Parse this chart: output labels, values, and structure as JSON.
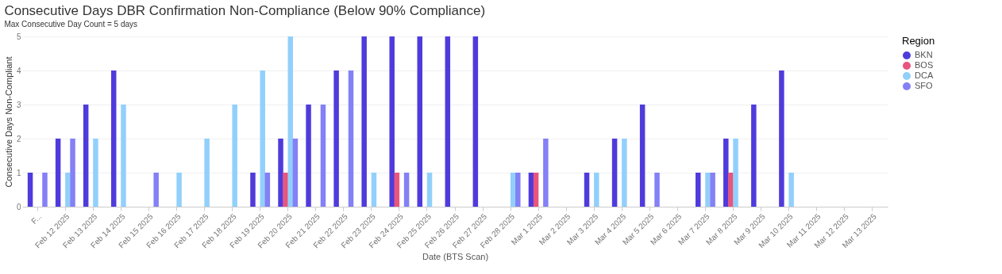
{
  "chart_data": {
    "type": "bar",
    "title": "Consecutive Days DBR Confirmation Non-Compliance  (Below 90% Compliance)",
    "subtitle": "Max Consecutive Day Count = 5 days",
    "xlabel": "Date (BTS Scan)",
    "ylabel": "Consecutive Days Non-Compliant",
    "legend_title": "Region",
    "categories": [
      "F...",
      "Feb 12 2025",
      "Feb 13 2025",
      "Feb 14 2025",
      "Feb 15 2025",
      "Feb 16 2025",
      "Feb 17 2025",
      "Feb 18 2025",
      "Feb 19 2025",
      "Feb 20 2025",
      "Feb 21 2025",
      "Feb 22 2025",
      "Feb 23 2025",
      "Feb 24 2025",
      "Feb 25 2025",
      "Feb 26 2025",
      "Feb 27 2025",
      "Feb 28 2025",
      "Mar 1 2025",
      "Mar 2 2025",
      "Mar 3 2025",
      "Mar 4 2025",
      "Mar 5 2025",
      "Mar 6 2025",
      "Mar 7 2025",
      "Mar 8 2025",
      "Mar 9 2025",
      "Mar 10 2025",
      "Mar 11 2025",
      "Mar 12 2025",
      "Mar 13 2025"
    ],
    "series": [
      {
        "name": "BKN",
        "color": "#4f3bdc",
        "values": [
          1,
          2,
          3,
          4,
          null,
          null,
          null,
          null,
          1,
          2,
          3,
          4,
          5,
          5,
          5,
          5,
          5,
          null,
          1,
          null,
          1,
          2,
          3,
          null,
          1,
          2,
          3,
          4,
          null,
          null,
          null
        ]
      },
      {
        "name": "BOS",
        "color": "#e8557d",
        "values": [
          null,
          null,
          null,
          null,
          null,
          null,
          null,
          null,
          null,
          1,
          null,
          null,
          null,
          1,
          null,
          null,
          null,
          null,
          1,
          null,
          null,
          null,
          null,
          null,
          null,
          1,
          null,
          null,
          null,
          null,
          null
        ]
      },
      {
        "name": "DCA",
        "color": "#92d0fb",
        "values": [
          null,
          1,
          2,
          3,
          null,
          1,
          2,
          3,
          4,
          5,
          null,
          null,
          1,
          null,
          1,
          null,
          null,
          1,
          null,
          null,
          1,
          2,
          null,
          null,
          1,
          2,
          null,
          1,
          null,
          null,
          null
        ]
      },
      {
        "name": "SFO",
        "color": "#8480f6",
        "values": [
          1,
          2,
          null,
          null,
          1,
          null,
          null,
          null,
          1,
          2,
          3,
          4,
          null,
          1,
          null,
          null,
          null,
          1,
          2,
          null,
          null,
          null,
          1,
          null,
          1,
          null,
          null,
          null,
          null,
          null,
          null
        ]
      }
    ],
    "ylim": [
      0,
      5
    ],
    "yticks": [
      0,
      1,
      2,
      3,
      4,
      5
    ],
    "grid": "y",
    "legend": "top right"
  }
}
